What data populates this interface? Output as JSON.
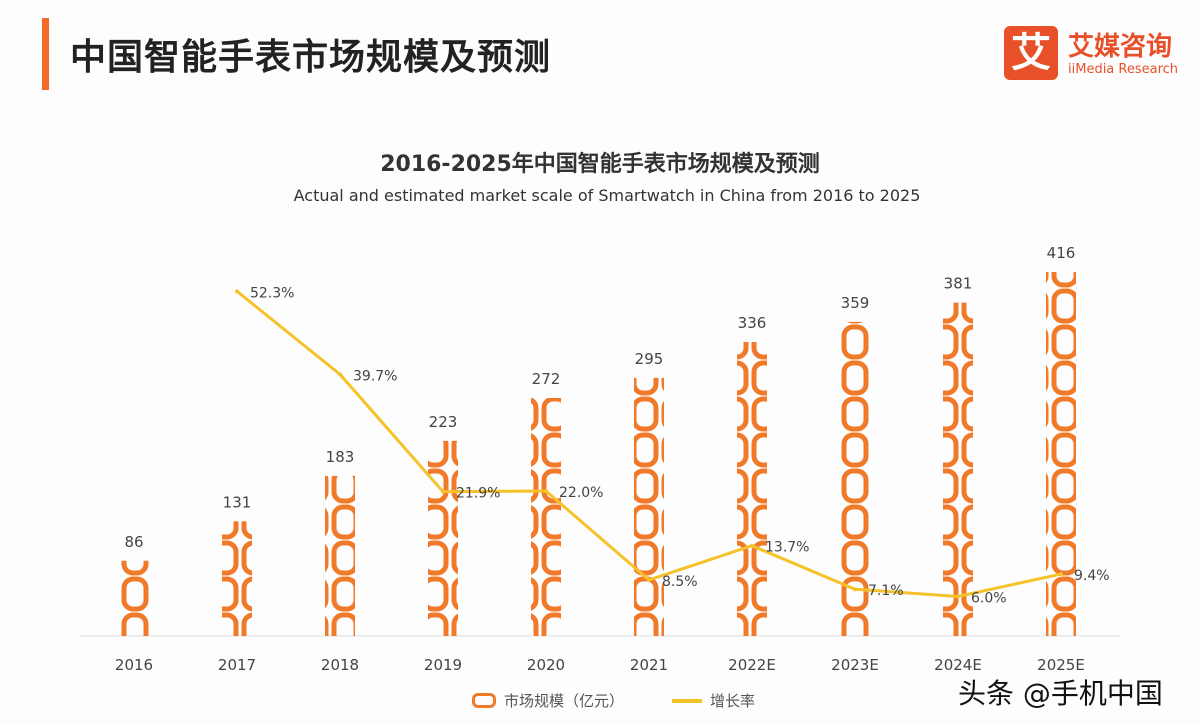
{
  "header": {
    "title": "中国智能手表市场规模及预测"
  },
  "logo": {
    "cn": "艾媒咨询",
    "en": "iiMedia Research",
    "mark": "艾"
  },
  "watermark": "头条 @手机中国",
  "colors": {
    "bar": "#f07a2a",
    "line": "#f5c22a",
    "accent": "#f06a2a"
  },
  "chart_data": {
    "type": "bar",
    "title": "2016-2025年中国智能手表市场规模及预测",
    "subtitle": "Actual and estimated market scale of Smartwatch in China from 2016 to 2025",
    "categories": [
      "2016",
      "2017",
      "2018",
      "2019",
      "2020",
      "2021",
      "2022E",
      "2023E",
      "2024E",
      "2025E"
    ],
    "series": [
      {
        "name": "市场规模（亿元）",
        "type": "bar",
        "values": [
          86,
          131,
          183,
          223,
          272,
          295,
          336,
          359,
          381,
          416
        ],
        "labels": [
          "86",
          "131",
          "183",
          "223",
          "272",
          "295",
          "336",
          "359",
          "381",
          "416"
        ]
      },
      {
        "name": "增长率",
        "type": "line",
        "values": [
          null,
          52.3,
          39.7,
          21.9,
          22.0,
          8.5,
          13.7,
          7.1,
          6.0,
          9.4
        ],
        "labels": [
          "",
          "52.3%",
          "39.7%",
          "21.9%",
          "22.0%",
          "8.5%",
          "13.7%",
          "7.1%",
          "6.0%",
          "9.4%"
        ]
      }
    ],
    "legend": "bottom",
    "grid": false
  }
}
